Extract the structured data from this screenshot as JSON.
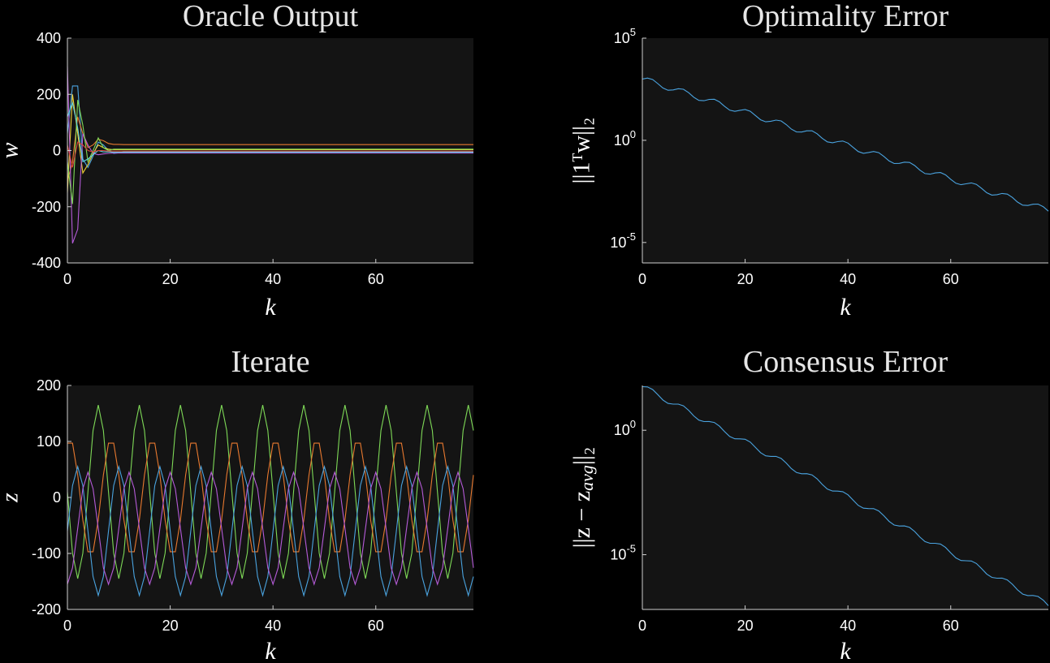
{
  "chart_data": [
    {
      "id": "oracle",
      "type": "line",
      "title": "Oracle Output",
      "xlabel": "k",
      "ylabel": "w",
      "xlim": [
        0,
        79
      ],
      "ylim": [
        -400,
        400
      ],
      "xticks": [
        0,
        20,
        40,
        60
      ],
      "yticks": [
        -400,
        -200,
        0,
        200,
        400
      ],
      "ytick_labels": [
        "-400",
        "-200",
        "0",
        "200",
        "400"
      ],
      "scale": "linear",
      "grid": false,
      "series": [
        {
          "color": "#4aa3df",
          "x": [
            0,
            1,
            2,
            3,
            4,
            5,
            6,
            7,
            8,
            9,
            10,
            11,
            12,
            15,
            20,
            79
          ],
          "y": [
            60,
            230,
            230,
            -30,
            -60,
            -20,
            30,
            20,
            0,
            -10,
            -8,
            -4,
            -3,
            -3,
            -3,
            -3
          ]
        },
        {
          "color": "#e8792f",
          "x": [
            0,
            1,
            2,
            3,
            4,
            5,
            6,
            7,
            8,
            9,
            10,
            11,
            12,
            15,
            20,
            79
          ],
          "y": [
            -110,
            -40,
            120,
            60,
            10,
            20,
            40,
            35,
            25,
            22,
            22,
            21,
            21,
            21,
            21,
            21
          ]
        },
        {
          "color": "#f2d237",
          "x": [
            0,
            1,
            2,
            3,
            4,
            5,
            6,
            7,
            8,
            9,
            10,
            11,
            12,
            15,
            20,
            79
          ],
          "y": [
            -150,
            200,
            60,
            -80,
            -50,
            -10,
            20,
            10,
            5,
            3,
            3,
            3,
            3,
            3,
            3,
            3
          ]
        },
        {
          "color": "#b55bd8",
          "x": [
            0,
            1,
            2,
            3,
            4,
            5,
            6,
            7,
            8,
            9,
            10,
            11,
            12,
            15,
            20,
            79
          ],
          "y": [
            300,
            -330,
            -280,
            60,
            20,
            -10,
            -15,
            -12,
            -10,
            -9,
            -9,
            -9,
            -9,
            -9,
            -9,
            -9
          ]
        },
        {
          "color": "#7ed957",
          "x": [
            0,
            1,
            2,
            3,
            4,
            5,
            6,
            7,
            8,
            9,
            10,
            11,
            12,
            15,
            20,
            79
          ],
          "y": [
            -40,
            -190,
            180,
            90,
            -40,
            0,
            45,
            10,
            0,
            5,
            5,
            5,
            5,
            5,
            5,
            5
          ]
        },
        {
          "color": "#5fd1e0",
          "x": [
            0,
            1,
            2,
            3,
            4,
            5,
            6,
            7,
            8,
            9,
            10,
            11,
            12,
            15,
            20,
            79
          ],
          "y": [
            120,
            170,
            80,
            -40,
            -30,
            -15,
            0,
            -5,
            -5,
            -6,
            -6,
            -6,
            -6,
            -6,
            -6,
            -6
          ]
        },
        {
          "color": "#d9443a",
          "x": [
            0,
            1,
            2,
            3,
            4,
            5,
            6,
            7,
            8,
            9,
            10,
            11,
            12,
            15,
            20,
            79
          ],
          "y": [
            20,
            -60,
            30,
            20,
            0,
            -5,
            0,
            0,
            -2,
            -2,
            -2,
            -2,
            -2,
            -2,
            -2,
            -2
          ]
        }
      ]
    },
    {
      "id": "optimality",
      "type": "line",
      "title": "Optimality Error",
      "xlabel": "k",
      "ylabel": "||1ᵀw||₂",
      "xlim": [
        0,
        79
      ],
      "ylim": [
        -6,
        5
      ],
      "scale": "log",
      "xticks": [
        0,
        20,
        40,
        60
      ],
      "yticks": [
        -5,
        0,
        5
      ],
      "ytick_labels": [
        {
          "base": "10",
          "exp": "-5"
        },
        {
          "base": "10",
          "exp": "0"
        },
        {
          "base": "10",
          "exp": "5"
        }
      ],
      "grid": false,
      "series": [
        {
          "color": "#4aa3df",
          "slope": -0.0814,
          "intercept": 3.0,
          "wobble": 0.15
        }
      ]
    },
    {
      "id": "iterate",
      "type": "line",
      "title": "Iterate",
      "xlabel": "k",
      "ylabel": "z",
      "xlim": [
        0,
        79
      ],
      "ylim": [
        -200,
        200
      ],
      "scale": "linear",
      "xticks": [
        0,
        20,
        40,
        60
      ],
      "yticks": [
        -200,
        -100,
        0,
        100,
        200
      ],
      "ytick_labels": [
        "-200",
        "-100",
        "0",
        "100",
        "200"
      ],
      "grid": false,
      "series": [
        {
          "color": "#7ed957",
          "offset": 10,
          "amplitude": 155,
          "period": 8,
          "phase": 4
        },
        {
          "color": "#e8792f",
          "offset": 0,
          "amplitude": 105,
          "period": 8,
          "phase": 6.5
        },
        {
          "color": "#4aa3df",
          "offset": -60,
          "amplitude": 115,
          "period": 8,
          "phase": 0
        },
        {
          "color": "#b55bd8",
          "offset": -55,
          "amplitude": 100,
          "period": 8,
          "phase": 2
        }
      ]
    },
    {
      "id": "consensus",
      "type": "line",
      "title": "Consensus Error",
      "xlabel": "k",
      "ylabel": "||z − z_avg||₂",
      "xlim": [
        0,
        79
      ],
      "ylim": [
        -7.2,
        1.8
      ],
      "scale": "log",
      "xticks": [
        0,
        20,
        40,
        60
      ],
      "yticks": [
        -5,
        0
      ],
      "ytick_labels": [
        {
          "base": "10",
          "exp": "-5"
        },
        {
          "base": "10",
          "exp": "0"
        }
      ],
      "grid": false,
      "series": [
        {
          "color": "#4aa3df",
          "slope": -0.111,
          "intercept": 1.75,
          "wobble": 0.12
        }
      ]
    }
  ]
}
